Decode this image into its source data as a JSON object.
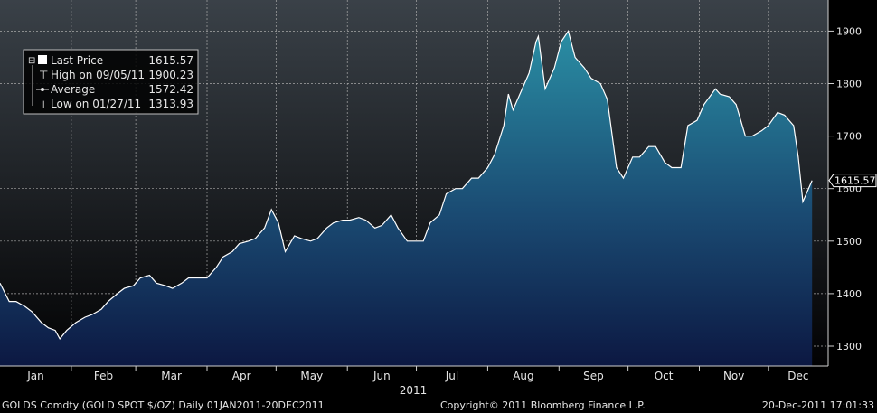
{
  "chart_data": {
    "type": "area",
    "year_label": "2011",
    "months": [
      "Jan",
      "Feb",
      "Mar",
      "Apr",
      "May",
      "Jun",
      "Jul",
      "Aug",
      "Sep",
      "Oct",
      "Nov",
      "Dec"
    ],
    "y_ticks": [
      1300,
      1400,
      1500,
      1600,
      1700,
      1800,
      1900
    ],
    "ylim": [
      1250,
      1950
    ],
    "grid": true,
    "last_price_tag": "1615.57",
    "legend": {
      "placement": "top-left",
      "entries": [
        {
          "label": "Last Price",
          "value": "1615.57"
        },
        {
          "label": "High on 09/05/11",
          "value": "1900.23"
        },
        {
          "label": "Average",
          "value": "1572.42"
        },
        {
          "label": "Low on 01/27/11",
          "value": "1313.93"
        }
      ]
    },
    "series": [
      {
        "x": [
          "2011-01-01",
          "2011-01-05",
          "2011-01-08",
          "2011-01-12",
          "2011-01-15",
          "2011-01-19",
          "2011-01-22",
          "2011-01-25",
          "2011-01-27",
          "2011-01-30",
          "2011-02-03",
          "2011-02-07",
          "2011-02-10",
          "2011-02-14",
          "2011-02-17",
          "2011-02-21",
          "2011-02-24",
          "2011-02-28",
          "2011-03-03",
          "2011-03-07",
          "2011-03-10",
          "2011-03-14",
          "2011-03-17",
          "2011-03-21",
          "2011-03-24",
          "2011-03-28",
          "2011-04-01",
          "2011-04-05",
          "2011-04-08",
          "2011-04-12",
          "2011-04-15",
          "2011-04-19",
          "2011-04-22",
          "2011-04-26",
          "2011-04-29",
          "2011-05-02",
          "2011-05-05",
          "2011-05-09",
          "2011-05-12",
          "2011-05-16",
          "2011-05-19",
          "2011-05-23",
          "2011-05-26",
          "2011-05-30",
          "2011-06-02",
          "2011-06-06",
          "2011-06-09",
          "2011-06-13",
          "2011-06-16",
          "2011-06-20",
          "2011-06-23",
          "2011-06-27",
          "2011-06-30",
          "2011-07-04",
          "2011-07-07",
          "2011-07-11",
          "2011-07-14",
          "2011-07-18",
          "2011-07-21",
          "2011-07-25",
          "2011-07-28",
          "2011-08-01",
          "2011-08-04",
          "2011-08-08",
          "2011-08-10",
          "2011-08-12",
          "2011-08-16",
          "2011-08-19",
          "2011-08-22",
          "2011-08-23",
          "2011-08-26",
          "2011-08-30",
          "2011-09-02",
          "2011-09-05",
          "2011-09-08",
          "2011-09-12",
          "2011-09-15",
          "2011-09-19",
          "2011-09-22",
          "2011-09-26",
          "2011-09-29",
          "2011-10-03",
          "2011-10-06",
          "2011-10-10",
          "2011-10-13",
          "2011-10-17",
          "2011-10-20",
          "2011-10-24",
          "2011-10-27",
          "2011-10-31",
          "2011-11-03",
          "2011-11-08",
          "2011-11-10",
          "2011-11-14",
          "2011-11-17",
          "2011-11-21",
          "2011-11-24",
          "2011-11-28",
          "2011-12-01",
          "2011-12-05",
          "2011-12-08",
          "2011-12-12",
          "2011-12-14",
          "2011-12-16",
          "2011-12-20"
        ],
        "values": [
          1420,
          1385,
          1385,
          1375,
          1365,
          1345,
          1335,
          1330,
          1314,
          1330,
          1345,
          1355,
          1360,
          1370,
          1385,
          1400,
          1410,
          1415,
          1430,
          1435,
          1420,
          1415,
          1410,
          1420,
          1430,
          1430,
          1430,
          1450,
          1470,
          1480,
          1495,
          1500,
          1505,
          1525,
          1560,
          1535,
          1480,
          1510,
          1505,
          1500,
          1505,
          1525,
          1535,
          1540,
          1540,
          1545,
          1540,
          1525,
          1530,
          1550,
          1525,
          1500,
          1500,
          1500,
          1535,
          1550,
          1590,
          1600,
          1600,
          1620,
          1620,
          1640,
          1665,
          1720,
          1780,
          1750,
          1790,
          1820,
          1880,
          1890,
          1790,
          1830,
          1880,
          1900,
          1850,
          1830,
          1810,
          1800,
          1770,
          1640,
          1620,
          1660,
          1660,
          1680,
          1680,
          1650,
          1640,
          1640,
          1720,
          1730,
          1760,
          1790,
          1780,
          1775,
          1760,
          1700,
          1700,
          1710,
          1720,
          1745,
          1740,
          1720,
          1660,
          1575,
          1615.57
        ]
      }
    ]
  },
  "footer": {
    "ticker": "GOLDS Comdty (GOLD SPOT $/OZ)  Daily 01JAN2011-20DEC2011",
    "copyright": "Copyright© 2011 Bloomberg Finance L.P.",
    "timestamp": "20-Dec-2011 17:01:33"
  },
  "colors": {
    "line": "#ffffff",
    "fill_top": "#2a8ea4",
    "fill_bottom": "#0c1842",
    "grid": "#a8a8a8",
    "bg_top": "#3a4148",
    "bg_bottom": "#020203"
  }
}
